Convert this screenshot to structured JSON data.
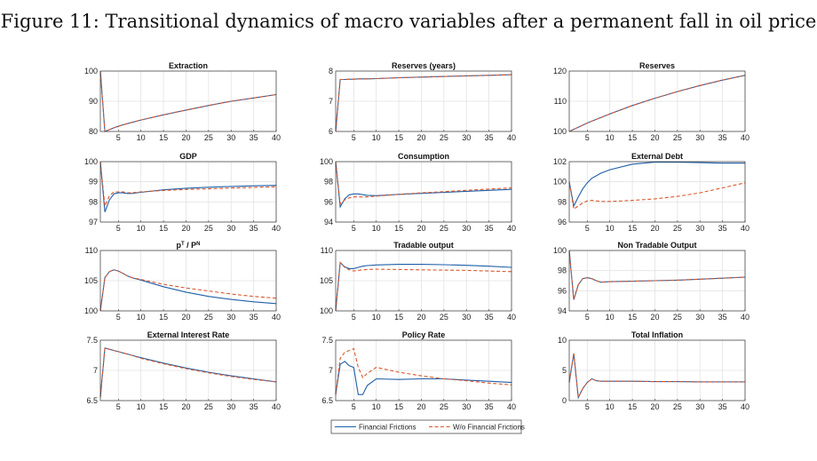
{
  "figure_title": "Figure 11: Transitional dynamics of macro variables after a permanent fall in oil price",
  "legend": {
    "series": [
      {
        "name": "Financial Frictions",
        "color": "#1f5fa8",
        "style": "solid"
      },
      {
        "name": "W/o Financial Frictions",
        "color": "#d9572b",
        "style": "dashed"
      }
    ]
  },
  "chart_data": [
    {
      "type": "line",
      "title": "Extraction",
      "xlim": [
        1,
        40
      ],
      "ylim": [
        80,
        100
      ],
      "xticks": [
        5,
        10,
        15,
        20,
        25,
        30,
        35,
        40
      ],
      "yticks": [
        80,
        90,
        100
      ],
      "grid": true,
      "x": [
        1,
        2,
        3,
        4,
        5,
        6,
        7,
        8,
        10,
        15,
        20,
        25,
        30,
        35,
        40
      ],
      "series": [
        {
          "name": "Financial Frictions",
          "values": [
            100,
            80,
            80.6,
            81.2,
            81.7,
            82.2,
            82.6,
            83,
            83.8,
            85.5,
            87.1,
            88.6,
            90,
            91.1,
            92.2
          ]
        },
        {
          "name": "W/o Financial Frictions",
          "values": [
            100,
            80,
            80.6,
            81.2,
            81.7,
            82.2,
            82.6,
            83,
            83.8,
            85.5,
            87.1,
            88.6,
            90,
            91.1,
            92.2
          ]
        }
      ]
    },
    {
      "type": "line",
      "title": "Reserves (years)",
      "xlim": [
        1,
        40
      ],
      "ylim": [
        6,
        8
      ],
      "xticks": [
        5,
        10,
        15,
        20,
        25,
        30,
        35,
        40
      ],
      "yticks": [
        6,
        7,
        8
      ],
      "grid": true,
      "x": [
        1,
        2,
        3,
        4,
        5,
        6,
        7,
        8,
        10,
        15,
        20,
        25,
        30,
        35,
        40
      ],
      "series": [
        {
          "name": "Financial Frictions",
          "values": [
            6,
            7.72,
            7.72,
            7.73,
            7.73,
            7.74,
            7.74,
            7.74,
            7.75,
            7.78,
            7.8,
            7.82,
            7.84,
            7.86,
            7.88
          ]
        },
        {
          "name": "W/o Financial Frictions",
          "values": [
            6,
            7.72,
            7.72,
            7.73,
            7.73,
            7.74,
            7.74,
            7.74,
            7.75,
            7.78,
            7.8,
            7.82,
            7.84,
            7.86,
            7.88
          ]
        }
      ]
    },
    {
      "type": "line",
      "title": "Reserves",
      "xlim": [
        1,
        40
      ],
      "ylim": [
        100,
        120
      ],
      "xticks": [
        5,
        10,
        15,
        20,
        25,
        30,
        35,
        40
      ],
      "yticks": [
        100,
        110,
        120
      ],
      "grid": true,
      "x": [
        1,
        2,
        3,
        4,
        5,
        6,
        7,
        8,
        10,
        15,
        20,
        25,
        30,
        35,
        40
      ],
      "series": [
        {
          "name": "Financial Frictions",
          "values": [
            100,
            100.7,
            101.4,
            102.1,
            102.8,
            103.4,
            104,
            104.6,
            105.8,
            108.6,
            111,
            113.2,
            115.2,
            117,
            118.6
          ]
        },
        {
          "name": "W/o Financial Frictions",
          "values": [
            100,
            100.7,
            101.4,
            102.1,
            102.8,
            103.4,
            104,
            104.6,
            105.8,
            108.6,
            111,
            113.2,
            115.2,
            117,
            118.6
          ]
        }
      ]
    },
    {
      "type": "line",
      "title": "GDP",
      "xlim": [
        1,
        40
      ],
      "ylim": [
        97,
        100
      ],
      "xticks": [
        5,
        10,
        15,
        20,
        25,
        30,
        35,
        40
      ],
      "yticks": [
        97,
        98,
        99,
        100
      ],
      "grid": true,
      "x": [
        1,
        2,
        3,
        4,
        5,
        6,
        7,
        8,
        10,
        15,
        20,
        25,
        30,
        35,
        40
      ],
      "series": [
        {
          "name": "Financial Frictions",
          "values": [
            100,
            97.5,
            98.1,
            98.4,
            98.45,
            98.45,
            98.42,
            98.42,
            98.48,
            98.6,
            98.68,
            98.73,
            98.77,
            98.8,
            98.82
          ]
        },
        {
          "name": "W/o Financial Frictions",
          "values": [
            100,
            97.8,
            98.3,
            98.5,
            98.5,
            98.5,
            98.46,
            98.45,
            98.5,
            98.57,
            98.62,
            98.65,
            98.69,
            98.72,
            98.75
          ]
        }
      ]
    },
    {
      "type": "line",
      "title": "Consumption",
      "xlim": [
        1,
        40
      ],
      "ylim": [
        94,
        100
      ],
      "xticks": [
        5,
        10,
        15,
        20,
        25,
        30,
        35,
        40
      ],
      "yticks": [
        94,
        96,
        98,
        100
      ],
      "grid": true,
      "x": [
        1,
        2,
        3,
        4,
        5,
        6,
        7,
        8,
        10,
        15,
        20,
        25,
        30,
        35,
        40
      ],
      "series": [
        {
          "name": "Financial Frictions",
          "values": [
            100,
            95.5,
            96.3,
            96.7,
            96.8,
            96.8,
            96.72,
            96.66,
            96.62,
            96.75,
            96.85,
            96.95,
            97.05,
            97.15,
            97.25
          ]
        },
        {
          "name": "W/o Financial Frictions",
          "values": [
            100,
            95.8,
            96.2,
            96.4,
            96.5,
            96.5,
            96.5,
            96.5,
            96.58,
            96.75,
            96.9,
            97.02,
            97.15,
            97.27,
            97.4
          ]
        }
      ]
    },
    {
      "type": "line",
      "title": "External Debt",
      "xlim": [
        1,
        40
      ],
      "ylim": [
        96,
        102
      ],
      "xticks": [
        5,
        10,
        15,
        20,
        25,
        30,
        35,
        40
      ],
      "yticks": [
        96,
        98,
        100,
        102
      ],
      "grid": true,
      "x": [
        1,
        2,
        3,
        4,
        5,
        6,
        7,
        8,
        10,
        15,
        20,
        25,
        30,
        35,
        40
      ],
      "series": [
        {
          "name": "Financial Frictions",
          "values": [
            100,
            97.6,
            98.5,
            99.3,
            99.9,
            100.35,
            100.6,
            100.85,
            101.2,
            101.75,
            101.95,
            101.95,
            101.9,
            101.85,
            101.85
          ]
        },
        {
          "name": "W/o Financial Frictions",
          "values": [
            100,
            97.3,
            97.6,
            97.9,
            98.1,
            98.15,
            98.1,
            98.05,
            98.05,
            98.15,
            98.3,
            98.55,
            98.9,
            99.4,
            99.9
          ]
        }
      ]
    },
    {
      "type": "line",
      "title": "pT / PN",
      "title_parts": [
        {
          "t": "p",
          "sup": false
        },
        {
          "t": "T",
          "sup": true
        },
        {
          "t": " / P",
          "sup": false
        },
        {
          "t": "N",
          "sup": true
        }
      ],
      "xlim": [
        1,
        40
      ],
      "ylim": [
        100,
        110
      ],
      "xticks": [
        5,
        10,
        15,
        20,
        25,
        30,
        35,
        40
      ],
      "yticks": [
        100,
        105,
        110
      ],
      "grid": true,
      "x": [
        1,
        2,
        3,
        4,
        5,
        6,
        7,
        8,
        10,
        15,
        20,
        25,
        30,
        35,
        40
      ],
      "series": [
        {
          "name": "Financial Frictions",
          "values": [
            100,
            105.5,
            106.5,
            106.8,
            106.6,
            106.2,
            105.8,
            105.5,
            105.1,
            104,
            103.1,
            102.4,
            101.9,
            101.5,
            101.2
          ]
        },
        {
          "name": "W/o Financial Frictions",
          "values": [
            100,
            105.5,
            106.5,
            106.8,
            106.6,
            106.2,
            105.8,
            105.5,
            105.2,
            104.4,
            103.8,
            103.3,
            102.8,
            102.4,
            102.1
          ]
        }
      ]
    },
    {
      "type": "line",
      "title": "Tradable output",
      "xlim": [
        1,
        40
      ],
      "ylim": [
        100,
        110
      ],
      "xticks": [
        5,
        10,
        15,
        20,
        25,
        30,
        35,
        40
      ],
      "yticks": [
        100,
        105,
        110
      ],
      "grid": true,
      "x": [
        1,
        2,
        3,
        4,
        5,
        6,
        7,
        8,
        10,
        15,
        20,
        25,
        30,
        35,
        40
      ],
      "series": [
        {
          "name": "Financial Frictions",
          "values": [
            100,
            108,
            107.3,
            107,
            107,
            107.2,
            107.4,
            107.5,
            107.6,
            107.7,
            107.7,
            107.65,
            107.55,
            107.4,
            107.2
          ]
        },
        {
          "name": "W/o Financial Frictions",
          "values": [
            100,
            108,
            107.2,
            106.8,
            106.6,
            106.7,
            106.8,
            106.85,
            106.9,
            106.85,
            106.8,
            106.75,
            106.7,
            106.6,
            106.5
          ]
        }
      ]
    },
    {
      "type": "line",
      "title": "Non Tradable Output",
      "xlim": [
        1,
        40
      ],
      "ylim": [
        94,
        100
      ],
      "xticks": [
        5,
        10,
        15,
        20,
        25,
        30,
        35,
        40
      ],
      "yticks": [
        94,
        96,
        98,
        100
      ],
      "grid": true,
      "x": [
        1,
        2,
        3,
        4,
        5,
        6,
        7,
        8,
        10,
        15,
        20,
        25,
        30,
        35,
        40
      ],
      "series": [
        {
          "name": "Financial Frictions",
          "values": [
            100,
            95.1,
            96.6,
            97.2,
            97.3,
            97.2,
            97,
            96.85,
            96.9,
            96.95,
            97,
            97.05,
            97.15,
            97.25,
            97.35
          ]
        },
        {
          "name": "W/o Financial Frictions",
          "values": [
            100,
            95.1,
            96.6,
            97.2,
            97.3,
            97.2,
            97,
            96.85,
            96.9,
            96.95,
            97,
            97.05,
            97.15,
            97.25,
            97.35
          ]
        }
      ]
    },
    {
      "type": "line",
      "title": "External Interest Rate",
      "xlim": [
        1,
        40
      ],
      "ylim": [
        6.5,
        7.5
      ],
      "xticks": [
        5,
        10,
        15,
        20,
        25,
        30,
        35,
        40
      ],
      "yticks": [
        6.5,
        7,
        7.5
      ],
      "grid": true,
      "x": [
        1,
        2,
        3,
        4,
        5,
        6,
        7,
        8,
        10,
        15,
        20,
        25,
        30,
        35,
        40
      ],
      "series": [
        {
          "name": "Financial Frictions",
          "values": [
            6.55,
            7.37,
            7.35,
            7.33,
            7.31,
            7.29,
            7.27,
            7.25,
            7.21,
            7.12,
            7.04,
            6.97,
            6.91,
            6.86,
            6.81
          ]
        },
        {
          "name": "W/o Financial Frictions",
          "values": [
            6.55,
            7.37,
            7.35,
            7.33,
            7.31,
            7.29,
            7.27,
            7.25,
            7.2,
            7.11,
            7.03,
            6.96,
            6.9,
            6.85,
            6.81
          ]
        }
      ]
    },
    {
      "type": "line",
      "title": "Policy Rate",
      "xlim": [
        1,
        40
      ],
      "ylim": [
        6.5,
        7.5
      ],
      "xticks": [
        5,
        10,
        15,
        20,
        25,
        30,
        35,
        40
      ],
      "yticks": [
        6.5,
        7,
        7.5
      ],
      "grid": true,
      "x": [
        1,
        2,
        3,
        4,
        5,
        6,
        7,
        8,
        10,
        15,
        20,
        25,
        30,
        35,
        40
      ],
      "series": [
        {
          "name": "Financial Frictions",
          "values": [
            6.6,
            7.1,
            7.15,
            7.08,
            7.05,
            6.6,
            6.6,
            6.75,
            6.86,
            6.85,
            6.86,
            6.86,
            6.84,
            6.82,
            6.8
          ]
        },
        {
          "name": "W/o Financial Frictions",
          "values": [
            6.6,
            7.2,
            7.3,
            7.33,
            7.36,
            7.05,
            6.88,
            6.95,
            7.05,
            6.97,
            6.91,
            6.86,
            6.83,
            6.79,
            6.76
          ]
        }
      ]
    },
    {
      "type": "line",
      "title": "Total Inflation",
      "xlim": [
        1,
        40
      ],
      "ylim": [
        0,
        10
      ],
      "xticks": [
        5,
        10,
        15,
        20,
        25,
        30,
        35,
        40
      ],
      "yticks": [
        0,
        5,
        10
      ],
      "grid": true,
      "x": [
        1,
        2,
        3,
        4,
        5,
        6,
        7,
        8,
        10,
        15,
        20,
        25,
        30,
        35,
        40
      ],
      "series": [
        {
          "name": "Financial Frictions",
          "values": [
            3,
            7.8,
            0.5,
            2,
            3,
            3.6,
            3.3,
            3.2,
            3.2,
            3.2,
            3.15,
            3.15,
            3.1,
            3.1,
            3.1
          ]
        },
        {
          "name": "W/o Financial Frictions",
          "values": [
            3,
            7.8,
            0.5,
            2,
            3,
            3.6,
            3.3,
            3.2,
            3.2,
            3.2,
            3.15,
            3.15,
            3.1,
            3.1,
            3.1
          ]
        }
      ]
    }
  ]
}
